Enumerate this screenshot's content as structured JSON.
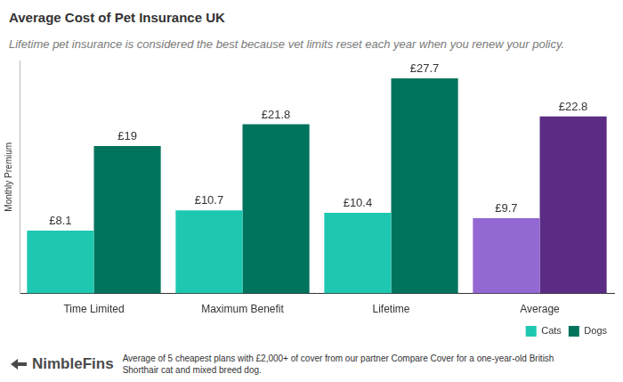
{
  "chart_data": {
    "type": "bar",
    "title": "Average Cost of Pet Insurance UK",
    "subtitle": "Lifetime pet insurance is considered the best because vet limits reset each year when you renew your policy.",
    "y_label": "Monthly Premium",
    "categories": [
      "Time Limited",
      "Maximum Benefit",
      "Lifetime",
      "Average"
    ],
    "series": [
      {
        "name": "Cats",
        "colors": [
          "#1ec8b0",
          "#1ec8b0",
          "#1ec8b0",
          "#9468d2"
        ],
        "values": [
          8.1,
          10.7,
          10.4,
          9.7
        ],
        "value_labels": [
          "£8.1",
          "£10.7",
          "£10.4",
          "£9.7"
        ]
      },
      {
        "name": "Dogs",
        "colors": [
          "#00735d",
          "#00735d",
          "#00735d",
          "#5b2c83"
        ],
        "values": [
          19,
          21.8,
          27.7,
          22.8
        ],
        "value_labels": [
          "£19",
          "£21.8",
          "£27.7",
          "£22.8"
        ]
      }
    ],
    "ylim": [
      0,
      30
    ],
    "grid": false,
    "legend": "bottom-right",
    "data_labels": true,
    "tick_labels": "x",
    "source": "NimbleFins",
    "note": "Average of 5 cheapest plans with £2,000+ of cover from our partner Compare Cover for a one-year-old British Shorthair cat and mixed breed dog."
  }
}
